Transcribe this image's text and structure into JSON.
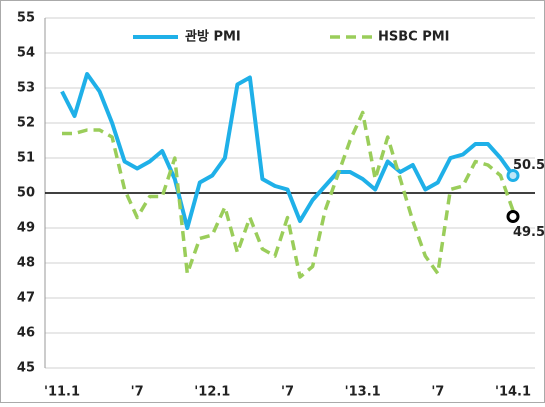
{
  "chart_data": {
    "type": "line",
    "categories": [
      "'11.1",
      null,
      null,
      null,
      null,
      null,
      "'7",
      null,
      null,
      null,
      null,
      null,
      "'12.1",
      null,
      null,
      null,
      null,
      null,
      "'7",
      null,
      null,
      null,
      null,
      null,
      "'13.1",
      null,
      null,
      null,
      null,
      null,
      "'7",
      null,
      null,
      null,
      null,
      null,
      "'14.1"
    ],
    "series": [
      {
        "name": "관방 PMI",
        "color": "#1fb0e8",
        "values": [
          52.9,
          52.2,
          53.4,
          52.9,
          52.0,
          50.9,
          50.7,
          50.9,
          51.2,
          50.4,
          49.0,
          50.3,
          50.5,
          51.0,
          53.1,
          53.3,
          50.4,
          50.2,
          50.1,
          49.2,
          49.8,
          50.2,
          50.6,
          50.6,
          50.4,
          50.1,
          50.9,
          50.6,
          50.8,
          50.1,
          50.3,
          51.0,
          51.1,
          51.4,
          51.4,
          51.0,
          50.5
        ]
      },
      {
        "name": "HSBC PMI",
        "color": "#9acd5a",
        "values": [
          51.7,
          51.7,
          51.8,
          51.8,
          51.6,
          50.1,
          49.3,
          49.9,
          49.9,
          51.0,
          47.7,
          48.7,
          48.8,
          49.6,
          48.3,
          49.3,
          48.4,
          48.2,
          49.3,
          47.6,
          47.9,
          49.5,
          50.5,
          51.5,
          52.3,
          50.4,
          51.6,
          50.4,
          49.2,
          48.2,
          47.7,
          50.1,
          50.2,
          50.9,
          50.8,
          50.5,
          49.5
        ]
      }
    ],
    "annotations": [
      "50.5",
      "49.5"
    ],
    "ylim": [
      45,
      55
    ],
    "yticks": [
      45,
      46,
      47,
      48,
      49,
      50,
      51,
      52,
      53,
      54,
      55
    ],
    "reference_line": 50,
    "grid": true
  }
}
